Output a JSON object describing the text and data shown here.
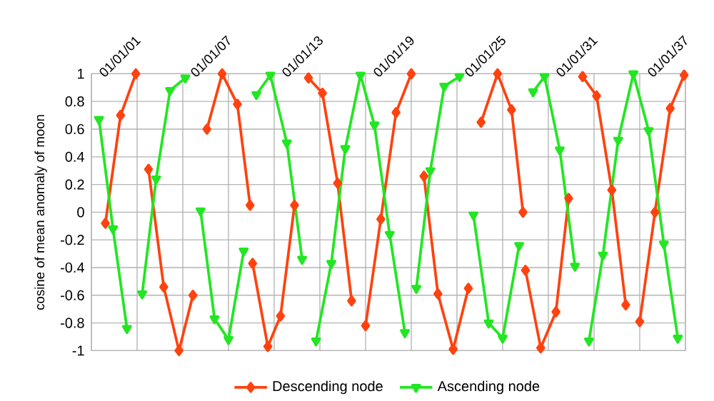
{
  "chart_data": {
    "type": "line",
    "ylabel": "cosine of mean anomaly of moon",
    "xlim": [
      "1998-01-01",
      "2037-01-01"
    ],
    "xticks": [
      {
        "value": "1998-01-01",
        "label": null
      },
      {
        "value": "2001-01-01",
        "label": "01/01/01"
      },
      {
        "value": "2004-01-01",
        "label": null
      },
      {
        "value": "2007-01-01",
        "label": "01/01/07"
      },
      {
        "value": "2010-01-01",
        "label": null
      },
      {
        "value": "2013-01-01",
        "label": "01/01/13"
      },
      {
        "value": "2016-01-01",
        "label": null
      },
      {
        "value": "2019-01-01",
        "label": "01/01/19"
      },
      {
        "value": "2022-01-01",
        "label": null
      },
      {
        "value": "2025-01-01",
        "label": "01/01/25"
      },
      {
        "value": "2028-01-01",
        "label": null
      },
      {
        "value": "2031-01-01",
        "label": "01/01/31"
      },
      {
        "value": "2034-01-01",
        "label": null
      },
      {
        "value": "2037-01-01",
        "label": "01/01/37"
      }
    ],
    "ylim": [
      -1,
      1
    ],
    "yticks": [
      -1,
      -0.8,
      -0.6,
      -0.4,
      -0.2,
      0,
      0.2,
      0.4,
      0.6,
      0.8,
      1
    ],
    "grid": true,
    "legend": "bottom",
    "line_style": "solid",
    "series": [
      {
        "name": "Descending node",
        "color": "#ff420e",
        "marker": "diamond",
        "x": [
          "1998-12",
          "1999-12",
          "2000-12",
          "2001-05",
          "2001-10",
          "2002-10",
          "2003-10",
          "2004-09",
          "2005-03",
          "2005-08",
          "2006-08",
          "2007-08",
          "2008-06",
          "2008-07",
          "2008-08",
          "2009-08",
          "2010-06",
          "2011-05",
          "2011-11",
          "2012-04",
          "2013-03",
          "2014-03",
          "2015-02",
          "2015-07",
          "2016-01",
          "2017-01",
          "2018-01",
          "2019-01",
          "2019-06",
          "2019-11",
          "2020-10",
          "2021-10",
          "2022-10",
          "2023-03",
          "2023-08",
          "2024-09",
          "2025-08",
          "2026-05",
          "2026-06",
          "2026-07",
          "2027-07",
          "2028-07",
          "2029-05",
          "2029-11",
          "2030-04",
          "2031-03",
          "2032-03",
          "2033-02",
          "2033-07",
          "2034-01",
          "2035-01",
          "2036-01",
          "2036-12"
        ],
        "values": [
          -0.08,
          0.7,
          1.0,
          null,
          0.31,
          -0.54,
          -1.0,
          -0.6,
          null,
          0.6,
          1.0,
          0.78,
          0.05,
          null,
          -0.37,
          -0.97,
          -0.75,
          0.05,
          null,
          0.97,
          0.86,
          0.21,
          -0.64,
          null,
          -0.82,
          -0.05,
          0.72,
          1.0,
          null,
          0.26,
          -0.59,
          -0.99,
          -0.55,
          null,
          0.65,
          1.0,
          0.74,
          0.0,
          null,
          -0.42,
          -0.98,
          -0.72,
          0.1,
          null,
          0.98,
          0.84,
          0.16,
          -0.67,
          null,
          -0.79,
          0.0,
          0.75,
          0.99
        ]
      },
      {
        "name": "Ascending node",
        "color": "#22e622",
        "marker": "triangle",
        "x": [
          "1998-07",
          "1999-06",
          "2000-05",
          "2000-11",
          "2001-05",
          "2002-04",
          "2003-03",
          "2004-03",
          "2004-09",
          "2005-03",
          "2006-02",
          "2007-01",
          "2008-01",
          "2008-06",
          "2008-11",
          "2009-10",
          "2010-11",
          "2011-11",
          "2012-05",
          "2012-10",
          "2013-10",
          "2014-09",
          "2015-09",
          "2016-08",
          "2017-08",
          "2018-08",
          "2019-01",
          "2019-05",
          "2020-04",
          "2021-03",
          "2022-03",
          "2022-09",
          "2023-02",
          "2024-02",
          "2025-01",
          "2026-02",
          "2026-07",
          "2027-01",
          "2027-10",
          "2028-10",
          "2029-10",
          "2030-03",
          "2030-09",
          "2031-08",
          "2032-08",
          "2033-08",
          "2034-08",
          "2035-08",
          "2036-07"
        ],
        "values": [
          0.67,
          -0.12,
          -0.84,
          null,
          -0.59,
          0.24,
          0.88,
          0.97,
          null,
          0.01,
          -0.77,
          -0.92,
          -0.28,
          null,
          0.85,
          0.99,
          0.5,
          -0.34,
          null,
          -0.93,
          -0.37,
          0.46,
          0.99,
          0.63,
          -0.16,
          -0.87,
          null,
          -0.55,
          0.3,
          0.91,
          0.98,
          null,
          -0.02,
          -0.8,
          -0.91,
          -0.24,
          null,
          0.87,
          0.98,
          0.45,
          -0.39,
          null,
          -0.93,
          -0.31,
          0.52,
          1.0,
          0.59,
          -0.23,
          -0.91
        ]
      }
    ]
  }
}
